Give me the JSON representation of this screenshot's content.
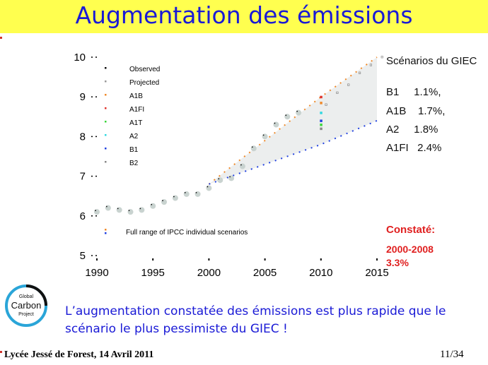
{
  "title": "Augmentation des émissions",
  "chart_data": {
    "type": "scatter",
    "xlim": [
      1990,
      2015
    ],
    "ylim": [
      5,
      10
    ],
    "x_ticks": [
      1990,
      1995,
      2000,
      2005,
      2010,
      2015
    ],
    "y_ticks": [
      5,
      6,
      7,
      8,
      9,
      10
    ],
    "observed": {
      "name": "Observed",
      "x": [
        1990,
        1991,
        1992,
        1993,
        1994,
        1995,
        1996,
        1997,
        1998,
        1999,
        2000,
        2001,
        2002,
        2003,
        2004,
        2005,
        2006,
        2007,
        2008
      ],
      "y": [
        6.1,
        6.2,
        6.15,
        6.1,
        6.15,
        6.25,
        6.35,
        6.45,
        6.55,
        6.55,
        6.7,
        6.9,
        6.95,
        7.25,
        7.7,
        8.0,
        8.3,
        8.5,
        8.6
      ]
    },
    "projected": {
      "name": "Projected",
      "x": [
        2010,
        2011,
        2012,
        2013,
        2014,
        2015
      ],
      "y": [
        8.8,
        9.1,
        9.3,
        9.6,
        9.8,
        10.0
      ]
    },
    "scenario_range": {
      "name": "Full range of IPCC individual scenarios",
      "upper": {
        "x": [
          2000,
          2005,
          2010,
          2015
        ],
        "y": [
          6.8,
          7.9,
          9.0,
          10.0
        ]
      },
      "lower": {
        "x": [
          2000,
          2005,
          2010,
          2015
        ],
        "y": [
          6.8,
          7.3,
          7.8,
          8.4
        ]
      }
    },
    "series_2010": [
      {
        "name": "A1B",
        "color": "#f08a2a",
        "x": 2010,
        "y": 8.85
      },
      {
        "name": "A1FI",
        "color": "#e0342c",
        "x": 2010,
        "y": 9.0
      },
      {
        "name": "A1T",
        "color": "#3ad63a",
        "x": 2010,
        "y": 8.3
      },
      {
        "name": "A2",
        "color": "#30d8e0",
        "x": 2010,
        "y": 8.6
      },
      {
        "name": "B1",
        "color": "#2040e0",
        "x": 2010,
        "y": 8.4
      },
      {
        "name": "B2",
        "color": "#888888",
        "x": 2010,
        "y": 8.2
      }
    ],
    "legend": [
      "Observed",
      "Projected",
      "A1B",
      "A1FI",
      "A1T",
      "A2",
      "B1",
      "B2"
    ],
    "legend_colors": [
      "#111111",
      "#999999",
      "#f08a2a",
      "#e0342c",
      "#3ad63a",
      "#30d8e0",
      "#2040e0",
      "#888888"
    ],
    "range_label": "Full range of IPCC individual scenarios",
    "range_label_colors": [
      "#f08a2a",
      "#2040e0"
    ]
  },
  "panel": {
    "title": "Scénarios du GIEC",
    "scenarios": [
      "B1     1.1%,",
      "A1B    1.7%,",
      "A2     1.8%",
      "A1FI   2.4%"
    ],
    "constate_title": "Constaté:",
    "constate_period": "2000-2008",
    "constate_rate": "3.3%"
  },
  "logo": {
    "line1": "Global",
    "line2": "Carbon",
    "line3": "Project"
  },
  "caption": "L’augmentation constatée des émissions est plus rapide que le scénario le plus pessimiste du GIEC !",
  "footer": {
    "left": "Lycée Jessé de Forest, 14 Avril 2011",
    "right": "11/34"
  }
}
